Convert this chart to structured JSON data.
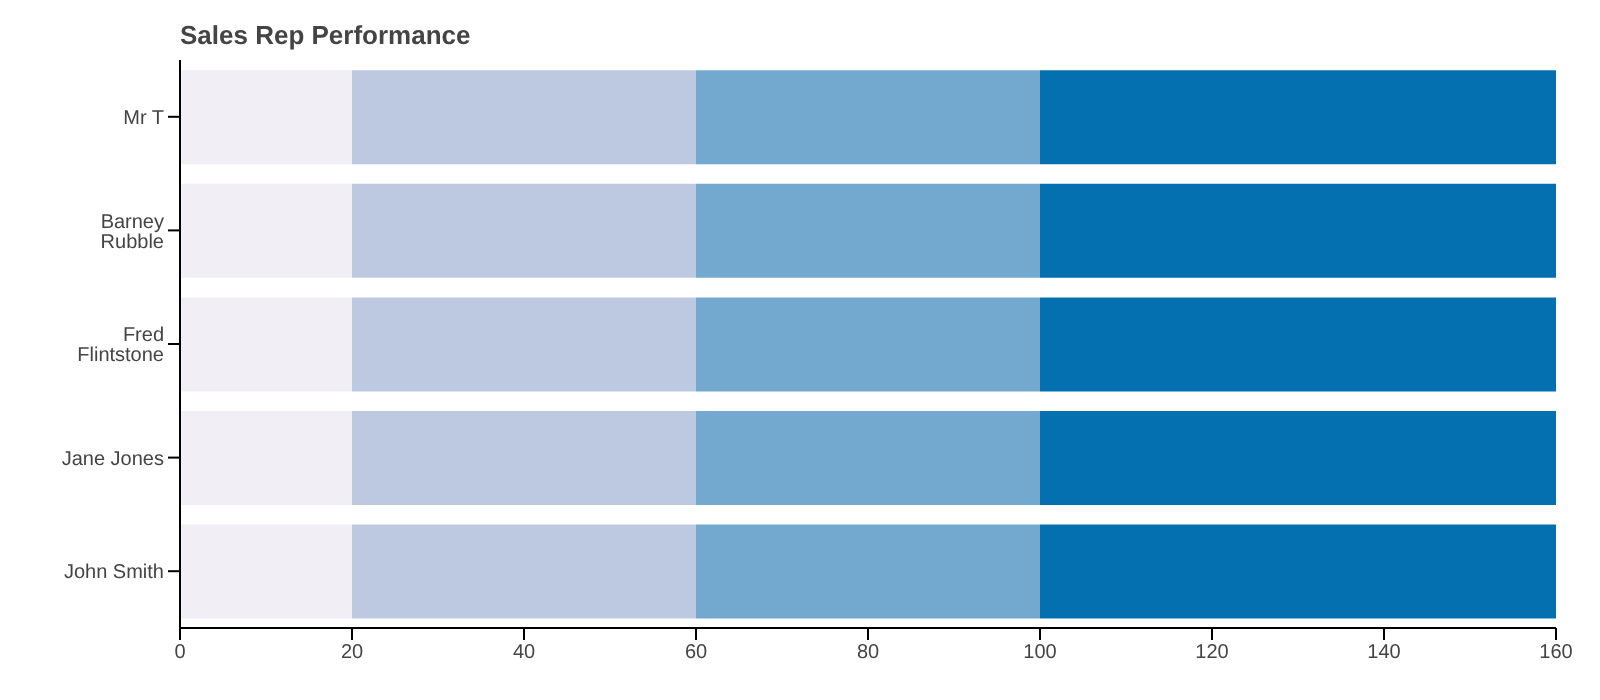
{
  "chart_data": {
    "type": "bar",
    "title": "Sales Rep Performance",
    "orientation": "horizontal",
    "stacked": true,
    "categories": [
      "Mr T",
      "Barney Rubble",
      "Fred Flintstone",
      "Jane Jones",
      "John Smith"
    ],
    "series": [
      {
        "color": "#f1eef6",
        "values": [
          20,
          20,
          20,
          20,
          20
        ]
      },
      {
        "color": "#bdc9e1",
        "values": [
          40,
          40,
          40,
          40,
          40
        ]
      },
      {
        "color": "#74a9cf",
        "values": [
          40,
          40,
          40,
          40,
          40
        ]
      },
      {
        "color": "#0570b0",
        "values": [
          60,
          60,
          60,
          60,
          60
        ]
      }
    ],
    "xlim": [
      0,
      160
    ],
    "xticks": [
      0,
      20,
      40,
      60,
      80,
      100,
      120,
      140,
      160
    ],
    "grid": false,
    "legend": false
  }
}
